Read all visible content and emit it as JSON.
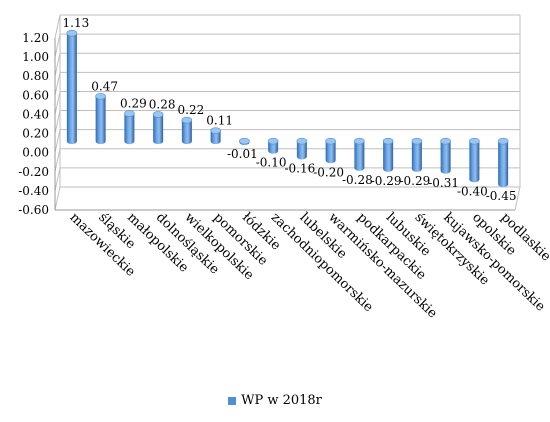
{
  "chart_data": {
    "type": "bar",
    "categories": [
      "mazowieckie",
      "śląskie",
      "małopolskie",
      "dolnośląskie",
      "wielkopolskie",
      "pomorskie",
      "łódzkie",
      "zachodniopomorskie",
      "lubelskie",
      "warmińsko-mazurskie",
      "podkarpackie",
      "lubuskie",
      "świętokrzyskie",
      "kujawsko-pomorskie",
      "opolskie",
      "podlaskie"
    ],
    "series": [
      {
        "name": "WP w 2018r",
        "values": [
          1.13,
          0.47,
          0.29,
          0.28,
          0.22,
          0.11,
          -0.01,
          -0.1,
          -0.16,
          -0.2,
          -0.28,
          -0.29,
          -0.29,
          -0.31,
          -0.4,
          -0.45
        ]
      }
    ],
    "value_labels": [
      "1.13",
      "0.47",
      "0.29",
      "0.28",
      "0.22",
      "0.11",
      "-0.01",
      "-0.10",
      "-0.16",
      "-0.20",
      "-0.28",
      "-0.29",
      "-0.29",
      "-0.31",
      "-0.40",
      "-0.45"
    ],
    "y_ticks": [
      "1.20",
      "1.00",
      "0.80",
      "0.60",
      "0.40",
      "0.20",
      "0.00",
      "-0.20",
      "-0.40",
      "-0.60"
    ],
    "ylim": [
      -0.6,
      1.2
    ],
    "grid": true,
    "legend_position": "bottom",
    "bar_color": "#4f8fd6"
  }
}
